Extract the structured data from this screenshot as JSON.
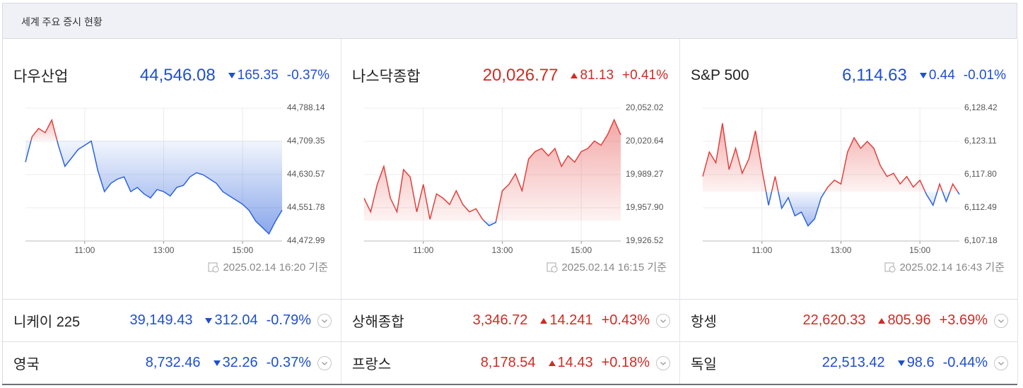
{
  "header": {
    "title": "세계 주요 증시 현황"
  },
  "main": [
    {
      "name": "다우산업",
      "price": "44,546.08",
      "change": "165.35",
      "change_pct": "-0.37%",
      "direction": "down",
      "color": "#1f4fd1",
      "timestamp": "2025.02.14 16:20 기준",
      "chart": {
        "type": "line",
        "up_color": "#e2403c",
        "down_color": "#2d63db",
        "baseline": 44711.43,
        "x": [
          "09:30",
          "09:40",
          "09:50",
          "10:00",
          "10:10",
          "10:20",
          "10:30",
          "10:40",
          "10:50",
          "11:00",
          "11:10",
          "11:20",
          "11:30",
          "11:40",
          "11:50",
          "12:00",
          "12:10",
          "12:20",
          "12:30",
          "12:40",
          "12:50",
          "13:00",
          "13:10",
          "13:20",
          "13:30",
          "13:40",
          "13:50",
          "14:00",
          "14:10",
          "14:20",
          "14:30",
          "14:40",
          "14:50",
          "15:00",
          "15:10",
          "15:20",
          "15:30",
          "15:40",
          "15:50",
          "16:00"
        ],
        "values": [
          44660,
          44720,
          44740,
          44730,
          44760,
          44700,
          44650,
          44670,
          44690,
          44700,
          44710,
          44640,
          44590,
          44610,
          44620,
          44625,
          44590,
          44600,
          44585,
          44575,
          44595,
          44590,
          44580,
          44600,
          44605,
          44625,
          44635,
          44630,
          44620,
          44610,
          44590,
          44580,
          44570,
          44560,
          44545,
          44520,
          44505,
          44490,
          44520,
          44546.08
        ],
        "xlim": [
          "09:30",
          "16:00"
        ],
        "xticks": [
          "11:00",
          "13:00",
          "15:00"
        ],
        "ylim": [
          44472.99,
          44788.14
        ],
        "yticks": [
          {
            "value": 44788.14,
            "label": "44,788.14"
          },
          {
            "value": 44709.35,
            "label": "44,709.35"
          },
          {
            "value": 44630.57,
            "label": "44,630.57"
          },
          {
            "value": 44551.78,
            "label": "44,551.78"
          },
          {
            "value": 44472.99,
            "label": "44,472.99"
          }
        ]
      }
    },
    {
      "name": "나스닥종합",
      "price": "20,026.77",
      "change": "81.13",
      "change_pct": "+0.41%",
      "direction": "up",
      "color": "#cf2c26",
      "timestamp": "2025.02.14 16:15 기준",
      "chart": {
        "type": "line",
        "up_color": "#e2403c",
        "down_color": "#2d63db",
        "baseline": 19945.64,
        "x": [
          "09:30",
          "09:40",
          "09:50",
          "10:00",
          "10:10",
          "10:20",
          "10:30",
          "10:40",
          "10:50",
          "11:00",
          "11:10",
          "11:20",
          "11:30",
          "11:40",
          "11:50",
          "12:00",
          "12:10",
          "12:20",
          "12:30",
          "12:40",
          "12:50",
          "13:00",
          "13:10",
          "13:20",
          "13:30",
          "13:40",
          "13:50",
          "14:00",
          "14:10",
          "14:20",
          "14:30",
          "14:40",
          "14:50",
          "15:00",
          "15:10",
          "15:20",
          "15:30",
          "15:40",
          "15:50",
          "16:00"
        ],
        "values": [
          19967,
          19954,
          19980,
          19997,
          19967,
          19954,
          19994,
          19987,
          19954,
          19980,
          19947,
          19971,
          19967,
          19961,
          19974,
          19961,
          19954,
          19957,
          19947,
          19941,
          19944,
          19974,
          19980,
          19990,
          19974,
          20004,
          20011,
          20014,
          20007,
          20014,
          19997,
          20007,
          20001,
          20011,
          20014,
          20021,
          20017,
          20027,
          20041,
          20026.77
        ],
        "xlim": [
          "09:30",
          "16:00"
        ],
        "xticks": [
          "11:00",
          "13:00",
          "15:00"
        ],
        "ylim": [
          19926.52,
          20052.02
        ],
        "yticks": [
          {
            "value": 20052.02,
            "label": "20,052.02"
          },
          {
            "value": 20020.64,
            "label": "20,020.64"
          },
          {
            "value": 19989.27,
            "label": "19,989.27"
          },
          {
            "value": 19957.9,
            "label": "19,957.90"
          },
          {
            "value": 19926.52,
            "label": "19,926.52"
          }
        ]
      }
    },
    {
      "name": "S&P 500",
      "price": "6,114.63",
      "change": "0.44",
      "change_pct": "-0.01%",
      "direction": "down",
      "color": "#1f4fd1",
      "timestamp": "2025.02.14 16:43 기준",
      "chart": {
        "type": "line",
        "up_color": "#e2403c",
        "down_color": "#2d63db",
        "baseline": 6115.07,
        "x": [
          "09:30",
          "09:40",
          "09:50",
          "10:00",
          "10:10",
          "10:20",
          "10:30",
          "10:40",
          "10:50",
          "11:00",
          "11:10",
          "11:20",
          "11:30",
          "11:40",
          "11:50",
          "12:00",
          "12:10",
          "12:20",
          "12:30",
          "12:40",
          "12:50",
          "13:00",
          "13:10",
          "13:20",
          "13:30",
          "13:40",
          "13:50",
          "14:00",
          "14:10",
          "14:20",
          "14:30",
          "14:40",
          "14:50",
          "15:00",
          "15:10",
          "15:20",
          "15:30",
          "15:40",
          "15:50",
          "16:00"
        ],
        "values": [
          6117.5,
          6121.4,
          6119.7,
          6126.0,
          6118.6,
          6122.0,
          6118.0,
          6120.3,
          6124.8,
          6118.6,
          6112.9,
          6117.5,
          6112.4,
          6114.1,
          6111.2,
          6111.8,
          6109.6,
          6110.7,
          6114.1,
          6115.8,
          6116.9,
          6116.3,
          6121.4,
          6123.7,
          6122.0,
          6123.1,
          6122.0,
          6119.2,
          6117.5,
          6118.0,
          6116.3,
          6117.5,
          6115.8,
          6116.9,
          6114.6,
          6112.9,
          6116.3,
          6113.5,
          6116.3,
          6114.63
        ],
        "xlim": [
          "09:30",
          "16:00"
        ],
        "xticks": [
          "11:00",
          "13:00",
          "15:00"
        ],
        "ylim": [
          6107.18,
          6128.42
        ],
        "yticks": [
          {
            "value": 6128.42,
            "label": "6,128.42"
          },
          {
            "value": 6123.11,
            "label": "6,123.11"
          },
          {
            "value": 6117.8,
            "label": "6,117.80"
          },
          {
            "value": 6112.49,
            "label": "6,112.49"
          },
          {
            "value": 6107.18,
            "label": "6,107.18"
          }
        ]
      }
    }
  ],
  "rows": [
    [
      {
        "name": "니케이 225",
        "price": "39,149.43",
        "change": "312.04",
        "change_pct": "-0.79%",
        "direction": "down",
        "color": "#1f4fd1"
      },
      {
        "name": "상해종합",
        "price": "3,346.72",
        "change": "14.241",
        "change_pct": "+0.43%",
        "direction": "up",
        "color": "#cf2c26"
      },
      {
        "name": "항셍",
        "price": "22,620.33",
        "change": "805.96",
        "change_pct": "+3.69%",
        "direction": "up",
        "color": "#cf2c26"
      }
    ],
    [
      {
        "name": "영국",
        "price": "8,732.46",
        "change": "32.26",
        "change_pct": "-0.37%",
        "direction": "down",
        "color": "#1f4fd1"
      },
      {
        "name": "프랑스",
        "price": "8,178.54",
        "change": "14.43",
        "change_pct": "+0.18%",
        "direction": "up",
        "color": "#cf2c26"
      },
      {
        "name": "독일",
        "price": "22,513.42",
        "change": "98.6",
        "change_pct": "-0.44%",
        "direction": "down",
        "color": "#1f4fd1"
      }
    ]
  ]
}
